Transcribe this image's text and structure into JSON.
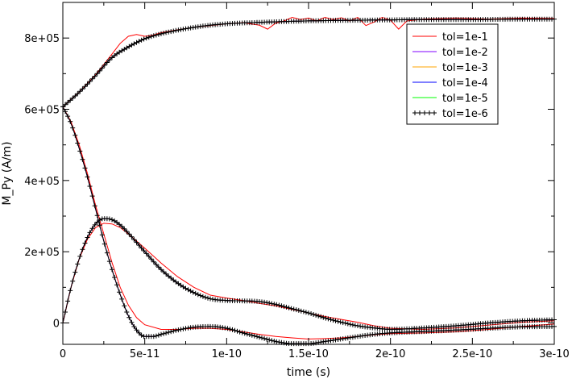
{
  "chart_data": {
    "type": "line",
    "xlabel": "time (s)",
    "ylabel": "M_Py (A/m)",
    "xlim": [
      0,
      3e-10
    ],
    "ylim": [
      -60000,
      900000
    ],
    "x_ticks": [
      0,
      5e-11,
      1e-10,
      1.5e-10,
      2e-10,
      2.5e-10,
      3e-10
    ],
    "x_tick_labels": [
      "0",
      "5e-11",
      "1e-10",
      "1.5e-10",
      "2e-10",
      "2.5e-10",
      "3e-10"
    ],
    "y_ticks": [
      0,
      200000,
      400000,
      600000,
      800000
    ],
    "y_tick_labels": [
      "0",
      "2e+05",
      "4e+05",
      "6e+05",
      "8e+05"
    ],
    "grid": false,
    "legend_position": "top-right",
    "series": [
      {
        "name": "tol=1e-1",
        "color": "#ff0000",
        "marker": "none"
      },
      {
        "name": "tol=1e-2",
        "color": "#8000ff",
        "marker": "none"
      },
      {
        "name": "tol=1e-3",
        "color": "#ffa500",
        "marker": "none"
      },
      {
        "name": "tol=1e-4",
        "color": "#0000ff",
        "marker": "none"
      },
      {
        "name": "tol=1e-5",
        "color": "#00ff00",
        "marker": "none"
      },
      {
        "name": "tol=1e-6",
        "color": "#000000",
        "marker": "plus"
      }
    ],
    "curves": [
      {
        "component": "upper",
        "reference": [
          [
            0,
            607000
          ],
          [
            1e-11,
            648000
          ],
          [
            2e-11,
            695000
          ],
          [
            3e-11,
            745000
          ],
          [
            4e-11,
            775000
          ],
          [
            5e-11,
            798000
          ],
          [
            6e-11,
            812000
          ],
          [
            7e-11,
            822000
          ],
          [
            8e-11,
            830000
          ],
          [
            9e-11,
            836000
          ],
          [
            1e-10,
            840000
          ],
          [
            1.2e-10,
            844000
          ],
          [
            1.4e-10,
            847000
          ],
          [
            1.6e-10,
            849000
          ],
          [
            1.8e-10,
            850000
          ],
          [
            2e-10,
            851000
          ],
          [
            2.2e-10,
            852000
          ],
          [
            2.5e-10,
            852000
          ],
          [
            2.8e-10,
            853000
          ],
          [
            3e-10,
            853000
          ]
        ],
        "coarse": [
          [
            0,
            607000
          ],
          [
            1e-11,
            648000
          ],
          [
            2e-11,
            697000
          ],
          [
            3e-11,
            755000
          ],
          [
            3.5e-11,
            785000
          ],
          [
            4e-11,
            805000
          ],
          [
            4.5e-11,
            810000
          ],
          [
            5e-11,
            805000
          ],
          [
            5.5e-11,
            808000
          ],
          [
            6e-11,
            815000
          ],
          [
            7e-11,
            823000
          ],
          [
            8e-11,
            830000
          ],
          [
            9e-11,
            835000
          ],
          [
            1e-10,
            840000
          ],
          [
            1.1e-10,
            843000
          ],
          [
            1.2e-10,
            836000
          ],
          [
            1.25e-10,
            825000
          ],
          [
            1.3e-10,
            842000
          ],
          [
            1.35e-10,
            848000
          ],
          [
            1.4e-10,
            858000
          ],
          [
            1.45e-10,
            852000
          ],
          [
            1.5e-10,
            856000
          ],
          [
            1.55e-10,
            848000
          ],
          [
            1.6e-10,
            858000
          ],
          [
            1.65e-10,
            852000
          ],
          [
            1.7e-10,
            857000
          ],
          [
            1.75e-10,
            848000
          ],
          [
            1.8e-10,
            858000
          ],
          [
            1.85e-10,
            835000
          ],
          [
            1.9e-10,
            845000
          ],
          [
            1.95e-10,
            858000
          ],
          [
            2e-10,
            850000
          ],
          [
            2.05e-10,
            825000
          ],
          [
            2.1e-10,
            848000
          ],
          [
            2.2e-10,
            853000
          ],
          [
            2.4e-10,
            856000
          ],
          [
            2.6e-10,
            853000
          ],
          [
            2.8e-10,
            856000
          ],
          [
            3e-10,
            855000
          ]
        ]
      },
      {
        "component": "decay",
        "reference": [
          [
            0,
            607000
          ],
          [
            5e-12,
            560000
          ],
          [
            1e-11,
            490000
          ],
          [
            1.5e-11,
            410000
          ],
          [
            2e-11,
            320000
          ],
          [
            2.5e-11,
            230000
          ],
          [
            3e-11,
            150000
          ],
          [
            3.5e-11,
            80000
          ],
          [
            4e-11,
            20000
          ],
          [
            4.5e-11,
            -20000
          ],
          [
            5e-11,
            -38000
          ],
          [
            5.5e-11,
            -38000
          ],
          [
            6e-11,
            -32000
          ],
          [
            7e-11,
            -20000
          ],
          [
            8e-11,
            -12000
          ],
          [
            9e-11,
            -10000
          ],
          [
            1e-10,
            -15000
          ],
          [
            1.1e-10,
            -28000
          ],
          [
            1.2e-10,
            -40000
          ],
          [
            1.3e-10,
            -52000
          ],
          [
            1.4e-10,
            -58000
          ],
          [
            1.5e-10,
            -58000
          ],
          [
            1.6e-10,
            -52000
          ],
          [
            1.7e-10,
            -45000
          ],
          [
            1.8e-10,
            -38000
          ],
          [
            1.9e-10,
            -32000
          ],
          [
            2e-10,
            -28000
          ],
          [
            2.2e-10,
            -24000
          ],
          [
            2.4e-10,
            -20000
          ],
          [
            2.6e-10,
            -15000
          ],
          [
            2.8e-10,
            -11000
          ],
          [
            3e-10,
            -10000
          ]
        ],
        "coarse": [
          [
            0,
            607000
          ],
          [
            5e-12,
            565000
          ],
          [
            1e-11,
            500000
          ],
          [
            1.5e-11,
            420000
          ],
          [
            2e-11,
            330000
          ],
          [
            2.5e-11,
            250000
          ],
          [
            3e-11,
            170000
          ],
          [
            3.5e-11,
            100000
          ],
          [
            4e-11,
            50000
          ],
          [
            4.5e-11,
            15000
          ],
          [
            5e-11,
            -5000
          ],
          [
            6e-11,
            -18000
          ],
          [
            7e-11,
            -18000
          ],
          [
            8e-11,
            -15000
          ],
          [
            9e-11,
            -15000
          ],
          [
            1e-10,
            -18000
          ],
          [
            1.1e-10,
            -25000
          ],
          [
            1.2e-10,
            -32000
          ],
          [
            1.3e-10,
            -38000
          ],
          [
            1.4e-10,
            -42000
          ],
          [
            1.5e-10,
            -45000
          ],
          [
            1.6e-10,
            -44000
          ],
          [
            1.7e-10,
            -42000
          ],
          [
            1.8e-10,
            -38000
          ],
          [
            1.9e-10,
            -33000
          ],
          [
            2e-10,
            -30000
          ],
          [
            2.2e-10,
            -28000
          ],
          [
            2.4e-10,
            -25000
          ],
          [
            2.6e-10,
            -18000
          ],
          [
            2.8e-10,
            -10000
          ],
          [
            3e-10,
            -3000
          ]
        ]
      },
      {
        "component": "rise",
        "reference": [
          [
            0,
            0
          ],
          [
            5e-12,
            100000
          ],
          [
            1e-11,
            180000
          ],
          [
            1.5e-11,
            240000
          ],
          [
            2e-11,
            278000
          ],
          [
            2.5e-11,
            293000
          ],
          [
            3e-11,
            290000
          ],
          [
            3.5e-11,
            275000
          ],
          [
            4e-11,
            252000
          ],
          [
            5e-11,
            200000
          ],
          [
            6e-11,
            150000
          ],
          [
            7e-11,
            112000
          ],
          [
            8e-11,
            85000
          ],
          [
            9e-11,
            68000
          ],
          [
            1e-10,
            63000
          ],
          [
            1.1e-10,
            62000
          ],
          [
            1.2e-10,
            60000
          ],
          [
            1.3e-10,
            52000
          ],
          [
            1.4e-10,
            40000
          ],
          [
            1.5e-10,
            28000
          ],
          [
            1.6e-10,
            14000
          ],
          [
            1.7e-10,
            2000
          ],
          [
            1.8e-10,
            -8000
          ],
          [
            1.9e-10,
            -14000
          ],
          [
            2e-10,
            -18000
          ],
          [
            2.2e-10,
            -14000
          ],
          [
            2.4e-10,
            -8000
          ],
          [
            2.6e-10,
            0
          ],
          [
            2.8e-10,
            6000
          ],
          [
            3e-10,
            9000
          ]
        ],
        "coarse": [
          [
            0,
            0
          ],
          [
            5e-12,
            100000
          ],
          [
            1e-11,
            180000
          ],
          [
            1.5e-11,
            235000
          ],
          [
            2e-11,
            268000
          ],
          [
            2.5e-11,
            280000
          ],
          [
            3e-11,
            278000
          ],
          [
            3.5e-11,
            268000
          ],
          [
            4e-11,
            250000
          ],
          [
            5e-11,
            210000
          ],
          [
            6e-11,
            168000
          ],
          [
            7e-11,
            130000
          ],
          [
            8e-11,
            100000
          ],
          [
            9e-11,
            78000
          ],
          [
            1e-10,
            70000
          ],
          [
            1.1e-10,
            63000
          ],
          [
            1.2e-10,
            55000
          ],
          [
            1.3e-10,
            48000
          ],
          [
            1.4e-10,
            38000
          ],
          [
            1.5e-10,
            28000
          ],
          [
            1.6e-10,
            18000
          ],
          [
            1.7e-10,
            10000
          ],
          [
            1.8e-10,
            2000
          ],
          [
            1.9e-10,
            -8000
          ],
          [
            2e-10,
            -15000
          ],
          [
            2.2e-10,
            -18000
          ],
          [
            2.4e-10,
            -14000
          ],
          [
            2.6e-10,
            -6000
          ],
          [
            2.8e-10,
            2000
          ],
          [
            3e-10,
            6000
          ]
        ]
      }
    ]
  }
}
